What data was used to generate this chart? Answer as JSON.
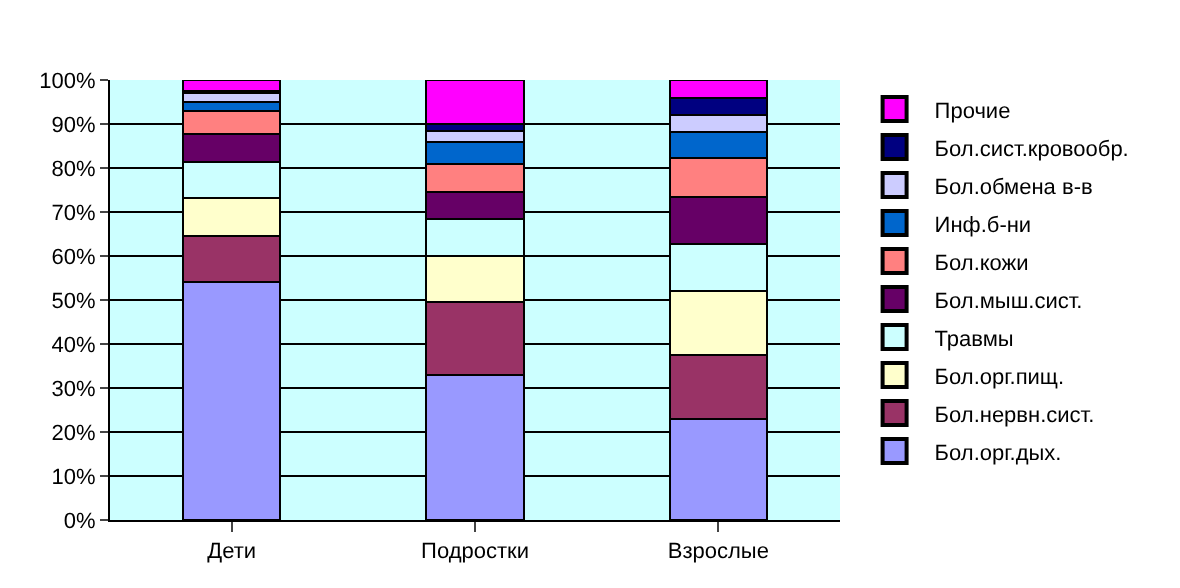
{
  "chart_data": {
    "type": "bar",
    "stacked": true,
    "categories": [
      "Дети",
      "Подростки",
      "Взрослые"
    ],
    "series": [
      {
        "name": "Бол.орг.дых.",
        "color": "#9999ff",
        "values": [
          54,
          33,
          23
        ]
      },
      {
        "name": "Бол.нервн.сист.",
        "color": "#993366",
        "values": [
          10.5,
          16.5,
          14.5
        ]
      },
      {
        "name": "Бол.орг.пищ.",
        "color": "#ffffcc",
        "values": [
          8.7,
          10.5,
          14.5
        ]
      },
      {
        "name": "Травмы",
        "color": "#ccffff",
        "values": [
          8.2,
          8.4,
          10.8
        ]
      },
      {
        "name": "Бол.мыш.сист.",
        "color": "#660066",
        "values": [
          6.3,
          6.1,
          10.5
        ]
      },
      {
        "name": "Бол.кожи",
        "color": "#ff8080",
        "values": [
          5.2,
          6.5,
          9
        ]
      },
      {
        "name": "Инф.б-ни",
        "color": "#0066cc",
        "values": [
          2.1,
          4.8,
          5.8
        ]
      },
      {
        "name": "Бол.обмена в-в",
        "color": "#ccccff",
        "values": [
          2.1,
          2.7,
          3.9
        ]
      },
      {
        "name": "Бол.сист.кровообр.",
        "color": "#000080",
        "values": [
          0.5,
          1.6,
          4
        ]
      },
      {
        "name": "Прочие",
        "color": "#ff00ff",
        "values": [
          2.4,
          9.9,
          4
        ]
      }
    ],
    "ylim": [
      0,
      100
    ],
    "yticks": [
      {
        "value": 0,
        "label": "0%"
      },
      {
        "value": 10,
        "label": "10%"
      },
      {
        "value": 20,
        "label": "20%"
      },
      {
        "value": 30,
        "label": "30%"
      },
      {
        "value": 40,
        "label": "40%"
      },
      {
        "value": 50,
        "label": "50%"
      },
      {
        "value": 60,
        "label": "60%"
      },
      {
        "value": 70,
        "label": "70%"
      },
      {
        "value": 80,
        "label": "80%"
      },
      {
        "value": 90,
        "label": "90%"
      },
      {
        "value": 100,
        "label": "100%"
      }
    ],
    "grid": "y",
    "legend": "right"
  }
}
